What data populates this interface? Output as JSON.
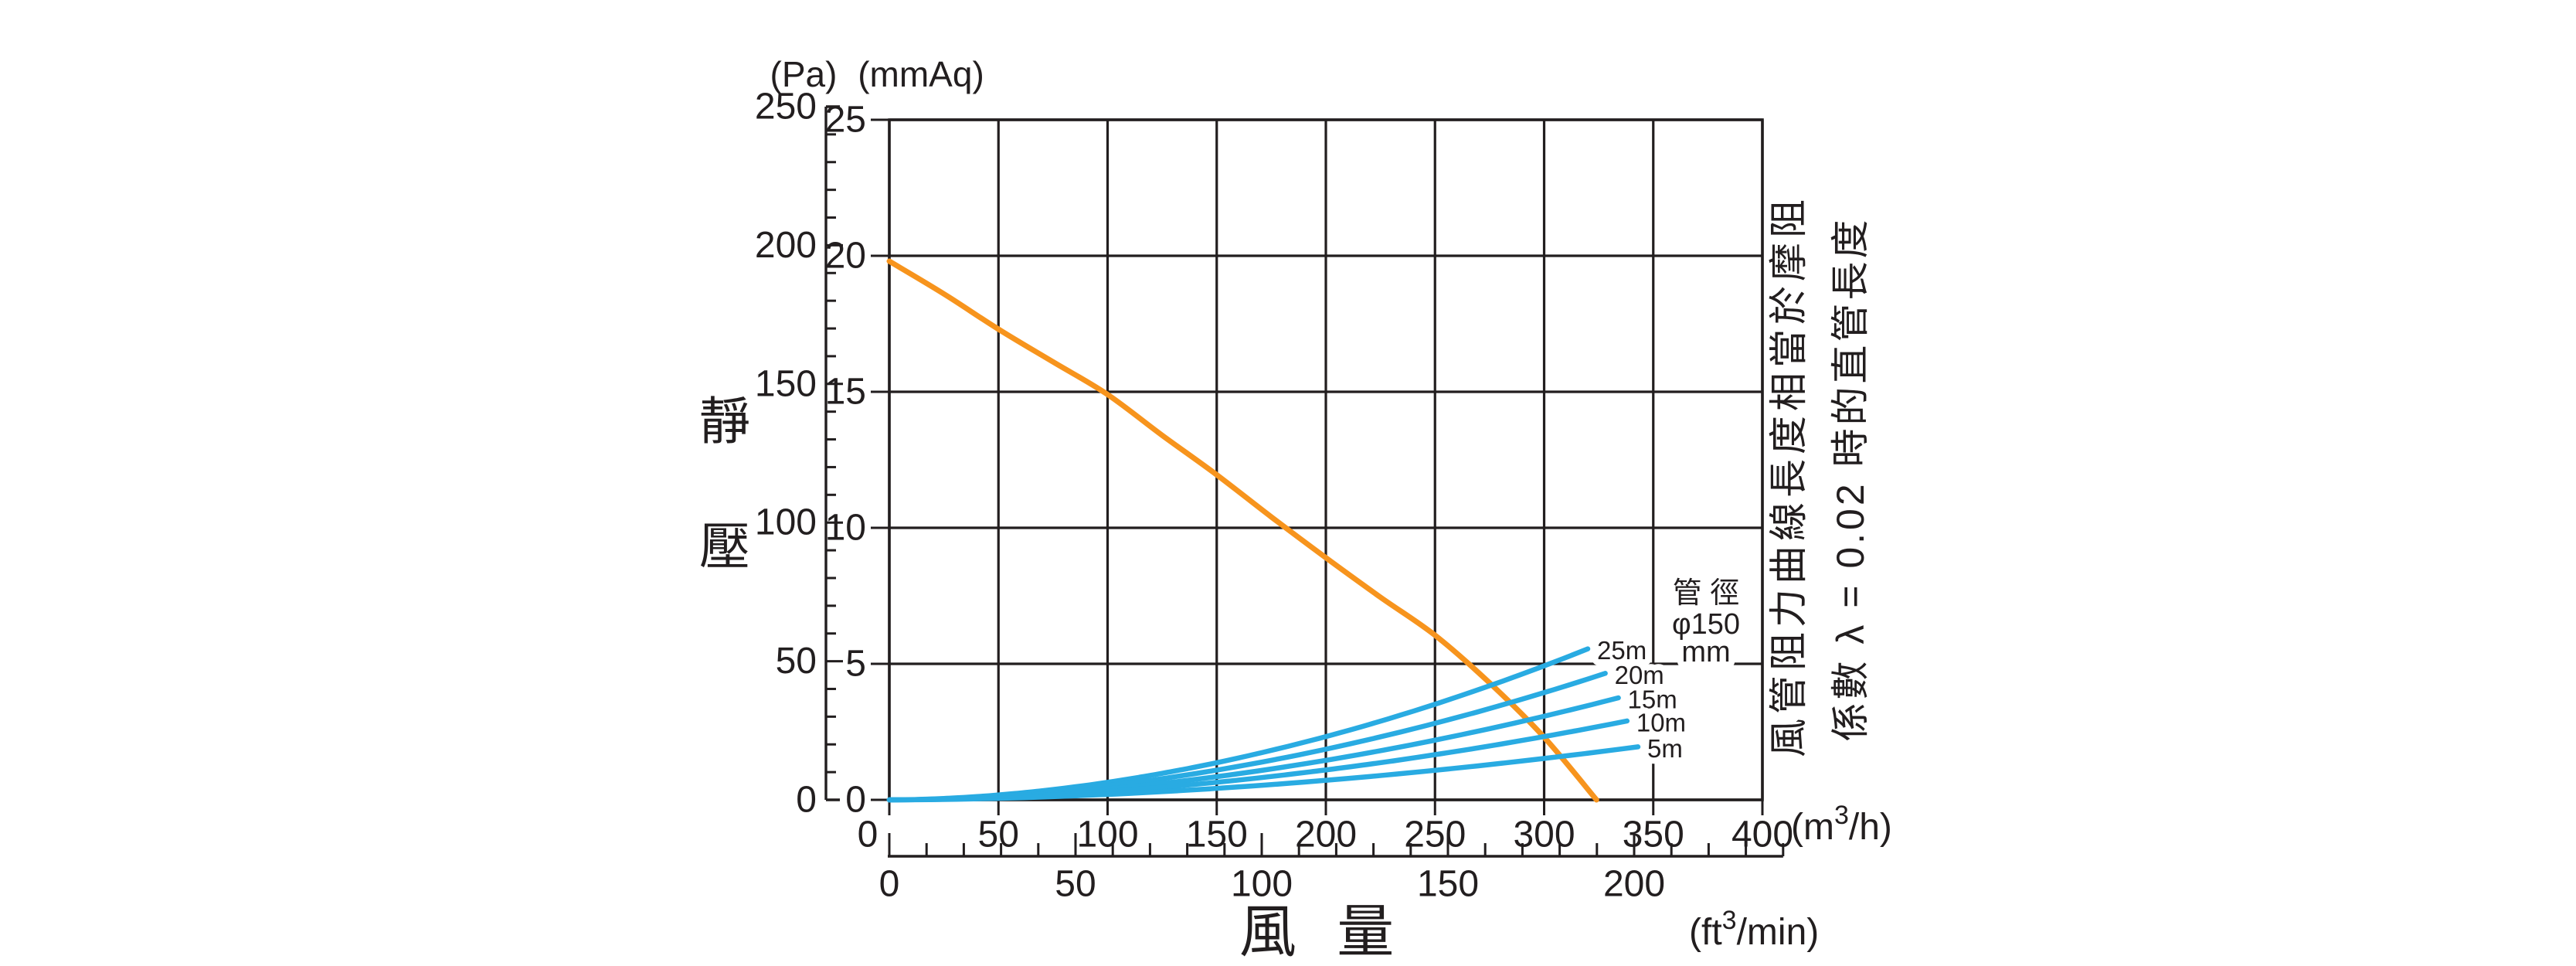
{
  "titles": {
    "pa_unit": "(Pa)",
    "mmaq_unit": "(mmAq)",
    "y_axis_chars": [
      "靜",
      "壓"
    ],
    "x_axis_label": "風 量",
    "m3h_unit": {
      "pre": "(m",
      "sup": "3",
      "post": "/h)"
    },
    "ft3min_unit": {
      "pre": "(ft",
      "sup": "3",
      "post": "/min)"
    }
  },
  "duct_note": {
    "line1": "管 徑",
    "line2": "φ150",
    "line3": "mm"
  },
  "side_note": {
    "line1": "風管阻力曲線長度相當於摩阻",
    "line2": "係數 λ = 0.02 時的直管長度"
  },
  "colors": {
    "fan_curve": "#F7941D",
    "resistance_curve": "#29ABE2",
    "axis": "#221E1F",
    "background": "#ffffff"
  },
  "chart_data": {
    "type": "line",
    "grid": true,
    "x_axis_primary": {
      "unit": "m3/h",
      "min": 0,
      "max": 400,
      "gridline_step": 50,
      "tick_labels": [
        0,
        50,
        100,
        150,
        200,
        250,
        300,
        350,
        400
      ]
    },
    "x_axis_secondary": {
      "unit": "ft3/min",
      "min": 0,
      "max": 240,
      "minor_tick_step": 10,
      "labeled_ticks": [
        0,
        50,
        100,
        150,
        200
      ],
      "m3h_per_unit": 1.699
    },
    "y_axis_primary": {
      "unit": "mmAq",
      "min": 0,
      "max": 25,
      "gridline_step": 5,
      "tick_labels": [
        25,
        20,
        15,
        10,
        5,
        0
      ]
    },
    "y_axis_secondary": {
      "unit": "Pa",
      "min": 0,
      "max": 250,
      "label_step": 50,
      "minor_tick_step": 10,
      "tick_labels": [
        250,
        200,
        150,
        100,
        50,
        0
      ]
    },
    "series": [
      {
        "name": "fan-performance-curve",
        "color": "#F7941D",
        "points": [
          [
            0,
            19.8
          ],
          [
            25,
            18.6
          ],
          [
            50,
            17.3
          ],
          [
            75,
            16.1
          ],
          [
            100,
            14.9
          ],
          [
            125,
            13.4
          ],
          [
            150,
            11.95
          ],
          [
            175,
            10.4
          ],
          [
            200,
            8.9
          ],
          [
            225,
            7.45
          ],
          [
            250,
            6.05
          ],
          [
            275,
            4.3
          ],
          [
            300,
            2.3
          ],
          [
            324,
            0
          ]
        ]
      },
      {
        "name": "duct-resistance-25m",
        "label": "25m",
        "color": "#29ABE2",
        "curve_exponent": 1.85,
        "end_point": [
          320,
          5.55
        ]
      },
      {
        "name": "duct-resistance-20m",
        "label": "20m",
        "color": "#29ABE2",
        "curve_exponent": 1.85,
        "end_point": [
          328,
          4.65
        ]
      },
      {
        "name": "duct-resistance-15m",
        "label": "15m",
        "color": "#29ABE2",
        "curve_exponent": 1.85,
        "end_point": [
          334,
          3.75
        ]
      },
      {
        "name": "duct-resistance-10m",
        "label": "10m",
        "color": "#29ABE2",
        "curve_exponent": 1.85,
        "end_point": [
          338,
          2.9
        ]
      },
      {
        "name": "duct-resistance-5m",
        "label": "5m",
        "color": "#29ABE2",
        "curve_exponent": 1.85,
        "end_point": [
          343,
          1.95
        ]
      }
    ]
  }
}
